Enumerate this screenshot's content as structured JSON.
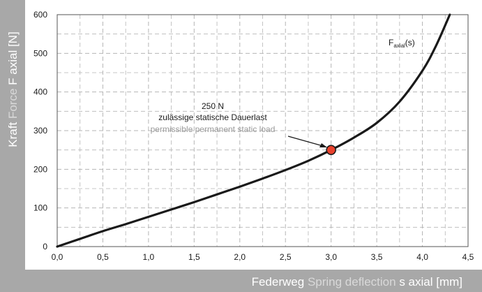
{
  "chart_data": {
    "type": "line",
    "xlim": [
      0,
      4.5
    ],
    "ylim": [
      0,
      600
    ],
    "x_ticks": [
      "0,0",
      "0,5",
      "1,0",
      "1,5",
      "2,0",
      "2,5",
      "3,0",
      "3,5",
      "4,0",
      "4,5"
    ],
    "y_ticks": [
      "0",
      "100",
      "200",
      "300",
      "400",
      "500",
      "600"
    ],
    "grid": "dashed",
    "xlabel": {
      "de": "Federweg",
      "en": "Spring deflection",
      "symbol": "s axial [mm]"
    },
    "ylabel": {
      "de": "Kraft",
      "en": "Force",
      "symbol": "F axial [N]"
    },
    "series": [
      {
        "name": "F",
        "name_subscript": "axial",
        "name_suffix": "(s)",
        "color": "#1a1a1a",
        "x": [
          0,
          0.25,
          0.5,
          0.75,
          1.0,
          1.25,
          1.5,
          1.75,
          2.0,
          2.25,
          2.5,
          2.75,
          3.0,
          3.25,
          3.5,
          3.75,
          4.0,
          4.15,
          4.3
        ],
        "y": [
          0,
          20,
          40,
          58,
          77,
          96,
          115,
          135,
          155,
          176,
          198,
          222,
          250,
          282,
          320,
          375,
          455,
          520,
          600
        ]
      }
    ],
    "marker": {
      "x": 3.0,
      "y": 250,
      "color": "#e8412c"
    },
    "annotation": {
      "value": "250 N",
      "de": "zulässige statische Dauerlast",
      "en": "permissible permanent static load"
    },
    "colors": {
      "axis_band": "#a8a8a8",
      "english_text": "#d9d9d9",
      "english_annotation": "#9a9a9a",
      "grid": "#b5b5b5"
    }
  }
}
